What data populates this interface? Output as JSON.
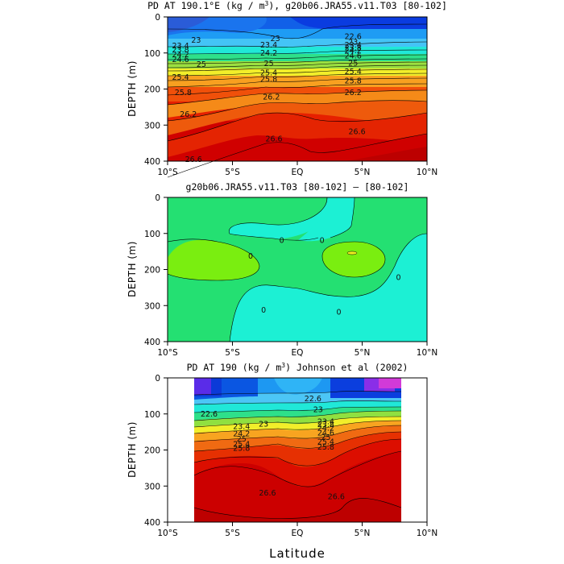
{
  "figure": {
    "xlabel": "Latitude",
    "depth_label": "DEPTH (m)"
  },
  "chart_data": [
    {
      "type": "heatmap",
      "title": "PD AT 190.1°E (kg / m³), g20b06.JRA55.v11.T03 [80-102]",
      "xlabel": "",
      "ylabel": "DEPTH (m)",
      "xlim": [
        -10,
        10
      ],
      "ylim": [
        400,
        0
      ],
      "x_tick_labels": [
        "10°S",
        "5°S",
        "EQ",
        "5°N",
        "10°N"
      ],
      "y_tick_labels": [
        "0",
        "100",
        "200",
        "300",
        "400"
      ],
      "contour_levels": [
        22.6,
        23.0,
        23.4,
        23.8,
        24.2,
        24.6,
        25.0,
        25.4,
        25.8,
        26.2,
        26.6
      ],
      "contour_labels": [
        {
          "lat": -7.8,
          "depth": 65,
          "text": "23"
        },
        {
          "lat": -9.0,
          "depth": 80,
          "text": "23.4"
        },
        {
          "lat": -9.0,
          "depth": 92,
          "text": "23.8"
        },
        {
          "lat": -9.0,
          "depth": 105,
          "text": "24.2"
        },
        {
          "lat": -9.0,
          "depth": 118,
          "text": "24.6"
        },
        {
          "lat": -7.4,
          "depth": 132,
          "text": "25"
        },
        {
          "lat": -9.0,
          "depth": 168,
          "text": "25.4"
        },
        {
          "lat": -8.8,
          "depth": 210,
          "text": "25.8"
        },
        {
          "lat": -8.4,
          "depth": 270,
          "text": "26.2"
        },
        {
          "lat": -8.0,
          "depth": 395,
          "text": "26.6"
        },
        {
          "lat": -2.2,
          "depth": 78,
          "text": "23.4"
        },
        {
          "lat": -2.2,
          "depth": 100,
          "text": "24.2"
        },
        {
          "lat": -2.2,
          "depth": 130,
          "text": "25"
        },
        {
          "lat": -2.2,
          "depth": 155,
          "text": "25.4"
        },
        {
          "lat": -2.2,
          "depth": 173,
          "text": "25.8"
        },
        {
          "lat": -2.0,
          "depth": 222,
          "text": "26.2"
        },
        {
          "lat": -1.8,
          "depth": 338,
          "text": "26.6"
        },
        {
          "lat": -1.7,
          "depth": 60,
          "text": "23"
        },
        {
          "lat": 4.3,
          "depth": 55,
          "text": "22.6"
        },
        {
          "lat": 4.3,
          "depth": 70,
          "text": "23"
        },
        {
          "lat": 4.3,
          "depth": 78,
          "text": "23.4"
        },
        {
          "lat": 4.3,
          "depth": 86,
          "text": "23.8"
        },
        {
          "lat": 4.3,
          "depth": 94,
          "text": "24.2"
        },
        {
          "lat": 4.3,
          "depth": 108,
          "text": "24.6"
        },
        {
          "lat": 4.3,
          "depth": 128,
          "text": "25"
        },
        {
          "lat": 4.3,
          "depth": 152,
          "text": "25.4"
        },
        {
          "lat": 4.3,
          "depth": 178,
          "text": "25.8"
        },
        {
          "lat": 4.3,
          "depth": 210,
          "text": "26.2"
        },
        {
          "lat": 4.6,
          "depth": 318,
          "text": "26.6"
        }
      ]
    },
    {
      "type": "heatmap",
      "title": "g20b06.JRA55.v11.T03 [80-102] – [80-102]",
      "xlabel": "",
      "ylabel": "DEPTH (m)",
      "xlim": [
        -10,
        10
      ],
      "ylim": [
        400,
        0
      ],
      "x_tick_labels": [
        "10°S",
        "5°S",
        "EQ",
        "5°N",
        "10°N"
      ],
      "y_tick_labels": [
        "0",
        "100",
        "200",
        "300",
        "400"
      ],
      "contour_levels": [
        0
      ],
      "contour_labels": [
        {
          "lat": -3.6,
          "depth": 163,
          "text": "0"
        },
        {
          "lat": -1.2,
          "depth": 120,
          "text": "0"
        },
        {
          "lat": 1.9,
          "depth": 120,
          "text": "0"
        },
        {
          "lat": -2.6,
          "depth": 313,
          "text": "0"
        },
        {
          "lat": 3.2,
          "depth": 318,
          "text": "0"
        },
        {
          "lat": 7.8,
          "depth": 222,
          "text": "0"
        }
      ]
    },
    {
      "type": "heatmap",
      "title": "PD AT 190 (kg / m³) Johnson et al (2002)",
      "xlabel": "Latitude",
      "ylabel": "DEPTH (m)",
      "xlim": [
        -10,
        10
      ],
      "ylim": [
        400,
        0
      ],
      "data_lat_range": [
        -8,
        8
      ],
      "x_tick_labels": [
        "10°S",
        "5°S",
        "EQ",
        "5°N",
        "10°N"
      ],
      "y_tick_labels": [
        "0",
        "100",
        "200",
        "300",
        "400"
      ],
      "contour_levels": [
        22.6,
        23.0,
        23.4,
        23.8,
        24.2,
        24.6,
        25.0,
        25.4,
        25.8,
        26.2,
        26.6
      ],
      "contour_labels": [
        {
          "lat": -6.8,
          "depth": 100,
          "text": "22.6"
        },
        {
          "lat": -2.6,
          "depth": 128,
          "text": "23"
        },
        {
          "lat": -4.3,
          "depth": 135,
          "text": "23.4"
        },
        {
          "lat": -4.3,
          "depth": 155,
          "text": "24.2"
        },
        {
          "lat": -4.3,
          "depth": 170,
          "text": "25"
        },
        {
          "lat": -4.3,
          "depth": 184,
          "text": "25.4"
        },
        {
          "lat": -4.3,
          "depth": 196,
          "text": "25.8"
        },
        {
          "lat": -2.3,
          "depth": 320,
          "text": "26.6"
        },
        {
          "lat": 1.2,
          "depth": 58,
          "text": "22.6"
        },
        {
          "lat": 1.6,
          "depth": 88,
          "text": "23"
        },
        {
          "lat": 2.2,
          "depth": 122,
          "text": "23.4"
        },
        {
          "lat": 2.2,
          "depth": 130,
          "text": "23.8"
        },
        {
          "lat": 2.2,
          "depth": 140,
          "text": "24.2"
        },
        {
          "lat": 2.2,
          "depth": 153,
          "text": "24.6"
        },
        {
          "lat": 2.2,
          "depth": 165,
          "text": "25"
        },
        {
          "lat": 2.2,
          "depth": 178,
          "text": "25.4"
        },
        {
          "lat": 2.2,
          "depth": 192,
          "text": "25.8"
        },
        {
          "lat": 3.0,
          "depth": 330,
          "text": "26.6"
        }
      ]
    }
  ]
}
